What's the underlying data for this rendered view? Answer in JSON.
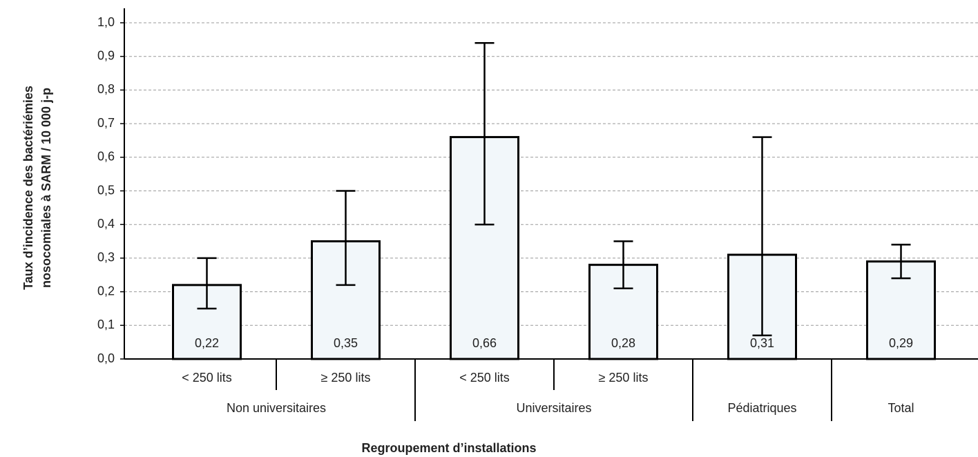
{
  "chart_data": {
    "type": "bar",
    "xlabel": "Regroupement d’installations",
    "ylabel": [
      "Taux d’incidence des bactériémies",
      "nosocomiales à SARM / 10 000 j-p"
    ],
    "groups": [
      {
        "label": "Non universitaires",
        "sub": [
          "< 250 lits",
          "≥ 250 lits"
        ]
      },
      {
        "label": "Universitaires",
        "sub": [
          "< 250 lits",
          "≥ 250 lits"
        ]
      },
      {
        "label": "Pédiatriques",
        "sub": [
          null
        ]
      },
      {
        "label": "Total",
        "sub": [
          null
        ]
      }
    ],
    "values": [
      0.22,
      0.35,
      0.66,
      0.28,
      0.31,
      0.29
    ],
    "value_labels": [
      "0,22",
      "0,35",
      "0,66",
      "0,28",
      "0,31",
      "0,29"
    ],
    "error_low": [
      0.15,
      0.22,
      0.4,
      0.21,
      0.07,
      0.24
    ],
    "error_high": [
      0.3,
      0.5,
      0.94,
      0.35,
      0.66,
      0.34
    ],
    "color": "#f2f7fa",
    "ylim": [
      0,
      1.0
    ],
    "yticks": [
      {
        "value": 0,
        "label": "0,0"
      },
      {
        "value": 0.1,
        "label": "0,1"
      },
      {
        "value": 0.2,
        "label": "0,2"
      },
      {
        "value": 0.3,
        "label": "0,3"
      },
      {
        "value": 0.4,
        "label": "0,4"
      },
      {
        "value": 0.5,
        "label": "0,5"
      },
      {
        "value": 0.6,
        "label": "0,6"
      },
      {
        "value": 0.7,
        "label": "0,7"
      },
      {
        "value": 0.8,
        "label": "0,8"
      },
      {
        "value": 0.9,
        "label": "0,9"
      },
      {
        "value": 1.0,
        "label": "1,0"
      }
    ],
    "grid": true
  }
}
